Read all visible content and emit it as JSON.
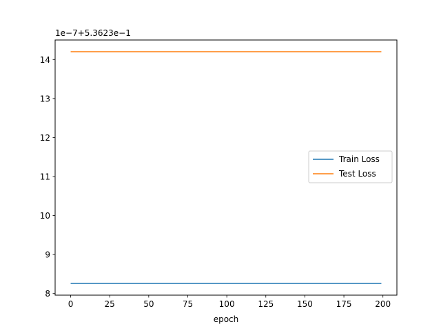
{
  "chart_data": {
    "type": "line",
    "title": "",
    "xlabel": "epoch",
    "ylabel": "",
    "offset_label": "1e−7+5.3623e−1",
    "xlim": [
      -9.95,
      208.95
    ],
    "ylim": [
      7.96,
      14.5
    ],
    "x_ticks": [
      0,
      25,
      50,
      75,
      100,
      125,
      150,
      175,
      200
    ],
    "y_ticks": [
      8,
      9,
      10,
      11,
      12,
      13,
      14
    ],
    "x_range": [
      0,
      199
    ],
    "grid": false,
    "legend_position": "center-right",
    "series": [
      {
        "name": "Train Loss",
        "color": "#1f77b4",
        "y": 8.26
      },
      {
        "name": "Test Loss",
        "color": "#ff7f0e",
        "y": 14.2
      }
    ]
  }
}
